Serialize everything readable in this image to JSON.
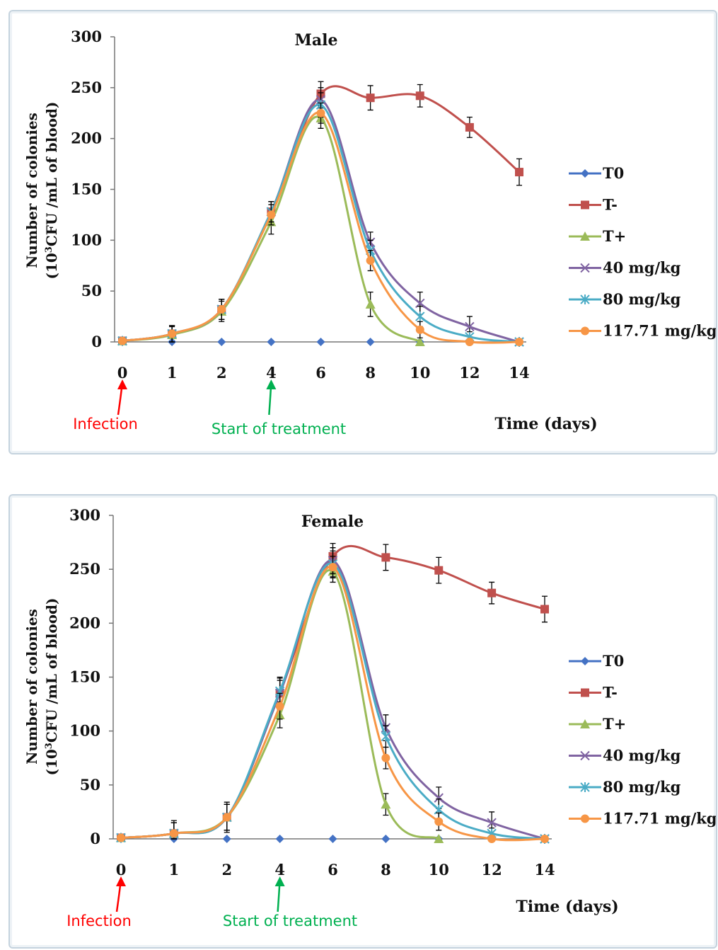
{
  "series_colors": {
    "T0": "#4472c4",
    "T-": "#c0504d",
    "T+": "#9bbb59",
    "40 mg/kg": "#8064a2",
    "80 mg/kg": "#4bacc6",
    "117.71 mg/kg": "#f79646"
  },
  "annotation_colors": {
    "infection": "#ff0000",
    "treatment": "#00b050"
  },
  "chart_data": [
    {
      "type": "line",
      "title": "Male",
      "xlabel": "Time (days)",
      "ylabel_line1": "Number of colonies",
      "ylabel_line2_prefix": "(10",
      "ylabel_line2_sup": "3",
      "ylabel_line2_suffix": "CFU /mL of blood)",
      "x": [
        0,
        1,
        2,
        4,
        6,
        8,
        10,
        12,
        14
      ],
      "x_tick_labels": [
        "0",
        "1",
        "2",
        "4",
        "6",
        "8",
        "10",
        "12",
        "14"
      ],
      "ylim": [
        0,
        300
      ],
      "y_ticks": [
        0,
        50,
        100,
        150,
        200,
        250,
        300
      ],
      "legend_position": "right",
      "annotations": {
        "infection": "Infection",
        "treatment": "Start of treatment"
      },
      "series": [
        {
          "name": "T0",
          "marker": "diamond",
          "values": [
            0,
            0,
            0,
            0,
            0,
            0,
            0,
            0,
            0
          ]
        },
        {
          "name": "T-",
          "marker": "square",
          "values": [
            1,
            8,
            32,
            128,
            244,
            240,
            242,
            211,
            167
          ],
          "error": [
            2,
            8,
            10,
            10,
            12,
            12,
            11,
            10,
            13
          ]
        },
        {
          "name": "T+",
          "marker": "triangle",
          "values": [
            1,
            7,
            30,
            118,
            220,
            37,
            0,
            null,
            null
          ],
          "error": [
            2,
            8,
            10,
            12,
            10,
            12,
            0,
            null,
            null
          ]
        },
        {
          "name": "40 mg/kg",
          "marker": "x",
          "values": [
            1,
            8,
            32,
            128,
            238,
            98,
            38,
            15,
            0
          ],
          "error": [
            2,
            8,
            10,
            10,
            12,
            10,
            11,
            10,
            0
          ]
        },
        {
          "name": "80 mg/kg",
          "marker": "star",
          "values": [
            1,
            8,
            32,
            128,
            233,
            90,
            25,
            5,
            0
          ],
          "error": [
            2,
            8,
            10,
            10,
            12,
            10,
            10,
            5,
            0
          ]
        },
        {
          "name": "117.71 mg/kg",
          "marker": "circle",
          "values": [
            1,
            8,
            32,
            125,
            225,
            80,
            12,
            0,
            0
          ],
          "error": [
            2,
            8,
            10,
            10,
            10,
            10,
            8,
            0,
            0
          ]
        }
      ]
    },
    {
      "type": "line",
      "title": "Female",
      "xlabel": "Time (days)",
      "ylabel_line1": "Number of colonies",
      "ylabel_line2_prefix": "(10",
      "ylabel_line2_sup": "3",
      "ylabel_line2_suffix": "CFU /mL of blood)",
      "x": [
        0,
        1,
        2,
        4,
        6,
        8,
        10,
        12,
        14
      ],
      "x_tick_labels": [
        "0",
        "1",
        "2",
        "4",
        "6",
        "8",
        "10",
        "12",
        "14"
      ],
      "ylim": [
        0,
        300
      ],
      "y_ticks": [
        0,
        50,
        100,
        150,
        200,
        250,
        300
      ],
      "legend_position": "right",
      "annotations": {
        "infection": "Infection",
        "treatment": "Start of treatment"
      },
      "series": [
        {
          "name": "T0",
          "marker": "diamond",
          "values": [
            0,
            0,
            0,
            0,
            0,
            0,
            0,
            0,
            0
          ]
        },
        {
          "name": "T-",
          "marker": "square",
          "values": [
            1,
            5,
            20,
            135,
            262,
            261,
            249,
            228,
            213
          ],
          "error": [
            2,
            12,
            14,
            15,
            12,
            12,
            12,
            10,
            12
          ]
        },
        {
          "name": "T+",
          "marker": "triangle",
          "values": [
            1,
            5,
            20,
            115,
            248,
            32,
            0,
            null,
            null
          ],
          "error": [
            2,
            10,
            12,
            12,
            10,
            10,
            0,
            null,
            null
          ]
        },
        {
          "name": "40 mg/kg",
          "marker": "x",
          "values": [
            1,
            5,
            20,
            135,
            258,
            103,
            38,
            15,
            0
          ],
          "error": [
            2,
            10,
            12,
            12,
            12,
            12,
            10,
            10,
            0
          ]
        },
        {
          "name": "80 mg/kg",
          "marker": "star",
          "values": [
            1,
            5,
            20,
            137,
            255,
            95,
            27,
            5,
            0
          ],
          "error": [
            2,
            10,
            12,
            12,
            12,
            10,
            10,
            5,
            0
          ]
        },
        {
          "name": "117.71 mg/kg",
          "marker": "circle",
          "values": [
            1,
            5,
            20,
            123,
            252,
            75,
            16,
            0,
            0
          ],
          "error": [
            2,
            10,
            12,
            12,
            10,
            10,
            8,
            0,
            0
          ]
        }
      ]
    }
  ]
}
